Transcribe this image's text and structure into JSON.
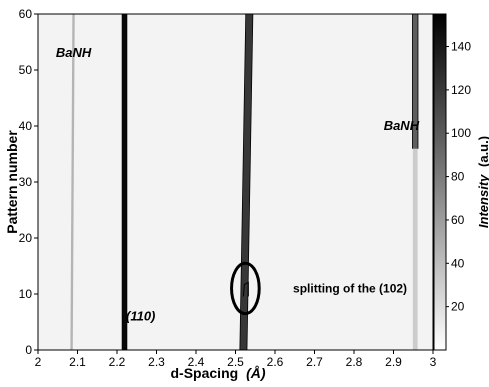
{
  "chart_data": {
    "type": "heatmap",
    "xlabel": "d-Spacing",
    "xunit": "(Å)",
    "ylabel": "Pattern number",
    "colorbar_label": "Intensity",
    "colorbar_unit": "(a.u.)",
    "xlim": [
      2.0,
      3.0
    ],
    "ylim": [
      0,
      60
    ],
    "clim": [
      0,
      155
    ],
    "x_ticks": [
      "2",
      "2.1",
      "2.2",
      "2.3",
      "2.4",
      "2.5",
      "2.6",
      "2.7",
      "2.8",
      "2.9",
      "3"
    ],
    "y_ticks": [
      "0",
      "10",
      "20",
      "30",
      "40",
      "50",
      "60"
    ],
    "colorbar_ticks": [
      "20",
      "40",
      "60",
      "80",
      "100",
      "120",
      "140"
    ],
    "colormap": [
      "#ffffff",
      "#000000"
    ],
    "peaks": [
      {
        "d_start": 2.085,
        "d_end": 2.09,
        "width": 0.006,
        "intensity": 40,
        "pattern_from": 0,
        "pattern_to": 60
      },
      {
        "d_start": 2.219,
        "d_end": 2.219,
        "width": 0.012,
        "intensity": 150,
        "pattern_from": 0,
        "pattern_to": 60
      },
      {
        "d_start": 2.52,
        "d_end": 2.535,
        "width": 0.018,
        "intensity": 120,
        "pattern_from": 0,
        "pattern_to": 60
      },
      {
        "d_start": 2.955,
        "d_end": 2.955,
        "width": 0.014,
        "intensity": 95,
        "pattern_from": 36,
        "pattern_to": 60
      },
      {
        "d_start": 2.955,
        "d_end": 2.955,
        "width": 0.012,
        "intensity": 25,
        "pattern_from": 0,
        "pattern_to": 36
      }
    ],
    "annotations": [
      {
        "text": "BaNH",
        "x": 2.09,
        "y": 53
      },
      {
        "text": "BaNH",
        "x": 2.92,
        "y": 40
      },
      {
        "text": "(110)",
        "x": 2.26,
        "y": 6
      },
      {
        "text": "splitting of the (102)",
        "x": 2.79,
        "y": 11
      }
    ],
    "highlight": {
      "label": "splitting of the (102)",
      "x": 2.525,
      "y": 11,
      "rx": 0.035,
      "ry": 4.5
    }
  }
}
